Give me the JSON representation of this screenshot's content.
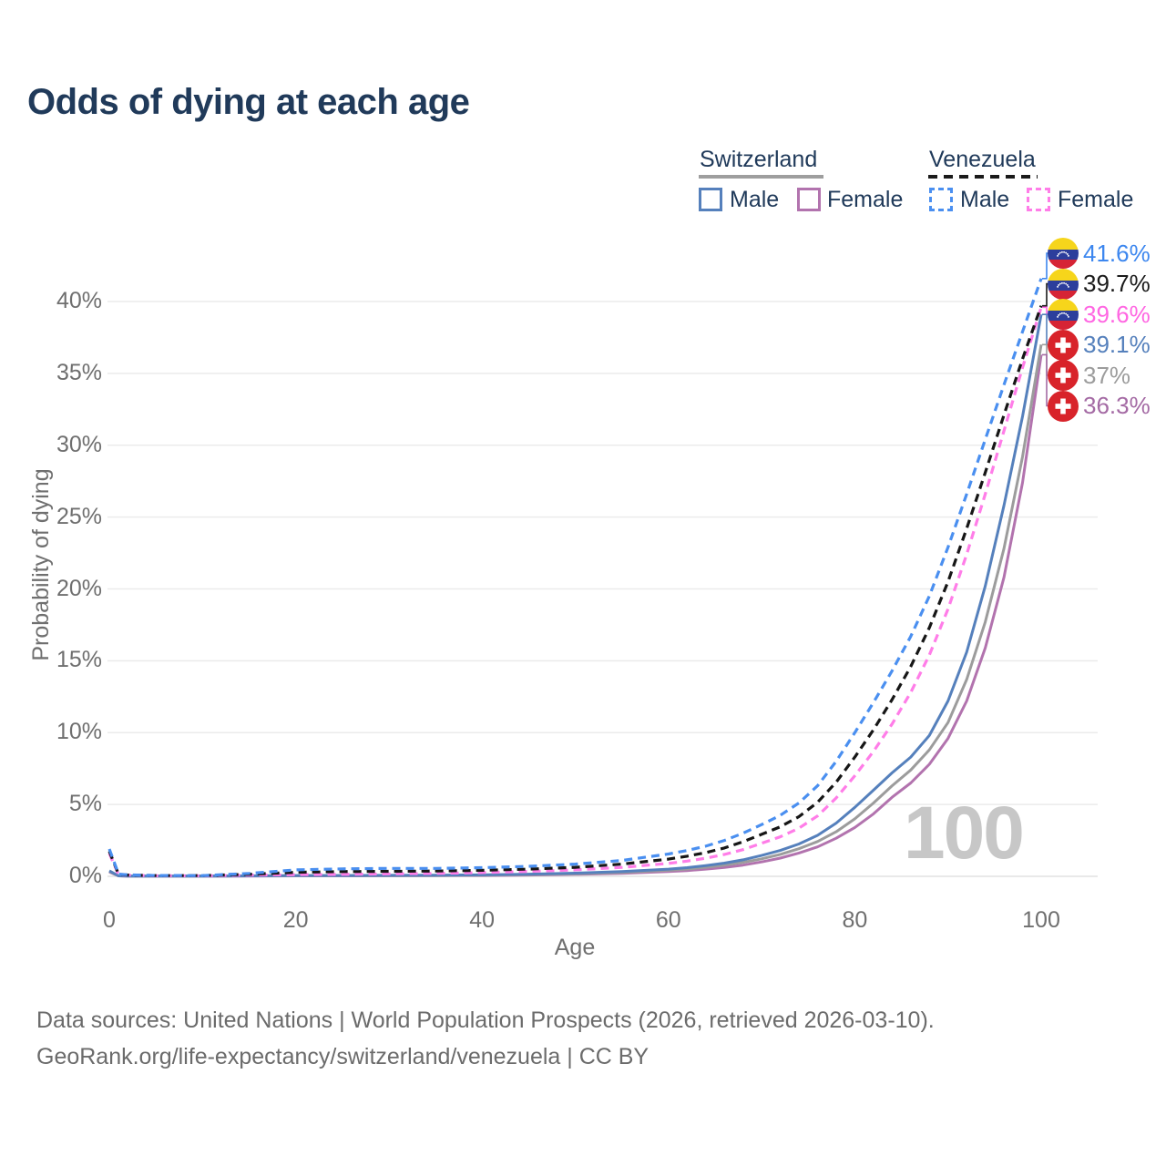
{
  "title": "Odds of dying at each age",
  "watermark_age": "100",
  "footer": {
    "line1": "Data sources: United Nations | World Population Prospects (2026, retrieved 2026-03-10).",
    "line2": "GeoRank.org/life-expectancy/switzerland/venezuela | CC BY"
  },
  "legend": {
    "groups": [
      {
        "name": "Switzerland",
        "line_style": "solid",
        "underline_color": "#9e9e9e",
        "items": [
          {
            "label": "Male",
            "color": "#5580bc",
            "style": "solid"
          },
          {
            "label": "Female",
            "color": "#b273ae",
            "style": "solid"
          }
        ]
      },
      {
        "name": "Venezuela",
        "line_style": "dashed",
        "underline_color": "#1a1a1a",
        "items": [
          {
            "label": "Male",
            "color": "#4a8ff0",
            "style": "dashed"
          },
          {
            "label": "Female",
            "color": "#ff7de8",
            "style": "dashed"
          }
        ]
      }
    ]
  },
  "chart_data": {
    "type": "line",
    "title": "Odds of dying at each age",
    "xlabel": "Age",
    "ylabel": "Probability of dying",
    "xlim": [
      0,
      100
    ],
    "ylim": [
      0,
      43
    ],
    "grid": "horizontal",
    "legend_position": "top-right",
    "x_tick_values": [
      0,
      20,
      40,
      60,
      80,
      100
    ],
    "x_tick_labels": [
      "0",
      "20",
      "40",
      "60",
      "80",
      "100"
    ],
    "y_tick_values": [
      0,
      5,
      10,
      15,
      20,
      25,
      30,
      35,
      40
    ],
    "y_tick_labels": [
      "0%",
      "5%",
      "10%",
      "15%",
      "20%",
      "25%",
      "30%",
      "35%",
      "40%"
    ],
    "x": [
      0,
      1,
      2,
      5,
      10,
      15,
      20,
      25,
      30,
      35,
      40,
      45,
      50,
      55,
      60,
      62,
      64,
      66,
      68,
      70,
      72,
      74,
      76,
      78,
      80,
      82,
      84,
      86,
      88,
      90,
      92,
      94,
      96,
      98,
      100
    ],
    "series": [
      {
        "name": "Venezuela Male",
        "country": "Venezuela",
        "sex": "Male",
        "color": "#4a8ff0",
        "dash": true,
        "flag": "venezuela",
        "end_label": "41.6%",
        "end_label_color": "#3d87ef",
        "values": [
          1.9,
          0.15,
          0.1,
          0.06,
          0.05,
          0.2,
          0.45,
          0.52,
          0.55,
          0.55,
          0.6,
          0.7,
          0.85,
          1.1,
          1.55,
          1.8,
          2.1,
          2.5,
          3.0,
          3.6,
          4.25,
          5.1,
          6.3,
          8.0,
          10.0,
          12.1,
          14.3,
          16.7,
          19.5,
          22.9,
          26.6,
          30.4,
          34.2,
          37.9,
          41.6
        ]
      },
      {
        "name": "Venezuela",
        "country": "Venezuela",
        "sex": "Both sexes",
        "color": "#161616",
        "dash": true,
        "flag": "venezuela",
        "end_label": "39.7%",
        "end_label_color": "#1a1a1a",
        "values": [
          1.75,
          0.13,
          0.09,
          0.05,
          0.05,
          0.14,
          0.28,
          0.33,
          0.35,
          0.37,
          0.42,
          0.5,
          0.63,
          0.85,
          1.2,
          1.4,
          1.65,
          1.97,
          2.4,
          2.92,
          3.45,
          4.15,
          5.15,
          6.55,
          8.3,
          10.2,
          12.3,
          14.6,
          17.3,
          20.5,
          24.2,
          28.1,
          32.1,
          36.0,
          39.7
        ]
      },
      {
        "name": "Venezuela Female",
        "country": "Venezuela",
        "sex": "Female",
        "color": "#ff7de8",
        "dash": true,
        "flag": "venezuela",
        "end_label": "39.6%",
        "end_label_color": "#ff66e2",
        "values": [
          1.6,
          0.11,
          0.08,
          0.04,
          0.04,
          0.08,
          0.12,
          0.14,
          0.17,
          0.2,
          0.26,
          0.34,
          0.45,
          0.62,
          0.9,
          1.06,
          1.26,
          1.52,
          1.86,
          2.3,
          2.75,
          3.35,
          4.2,
          5.45,
          7.0,
          8.7,
          10.6,
          12.8,
          15.4,
          18.6,
          22.4,
          26.6,
          31.0,
          35.4,
          39.6
        ]
      },
      {
        "name": "Switzerland Male",
        "country": "Switzerland",
        "sex": "Male",
        "color": "#5580bc",
        "dash": false,
        "flag": "switzerland",
        "end_label": "39.1%",
        "end_label_color": "#5580bc",
        "values": [
          0.38,
          0.03,
          0.02,
          0.01,
          0.01,
          0.03,
          0.06,
          0.06,
          0.07,
          0.08,
          0.1,
          0.15,
          0.22,
          0.33,
          0.5,
          0.6,
          0.75,
          0.92,
          1.15,
          1.45,
          1.8,
          2.25,
          2.85,
          3.7,
          4.8,
          6.0,
          7.2,
          8.3,
          9.8,
          12.2,
          15.6,
          20.2,
          25.8,
          32.0,
          39.1
        ]
      },
      {
        "name": "Switzerland",
        "country": "Switzerland",
        "sex": "Both sexes",
        "color": "#9c9c9c",
        "dash": false,
        "flag": "switzerland",
        "end_label": "37%",
        "end_label_color": "#9c9c9c",
        "values": [
          0.34,
          0.03,
          0.02,
          0.01,
          0.01,
          0.03,
          0.04,
          0.05,
          0.05,
          0.06,
          0.08,
          0.12,
          0.18,
          0.27,
          0.42,
          0.51,
          0.63,
          0.78,
          0.97,
          1.22,
          1.53,
          1.92,
          2.42,
          3.1,
          4.0,
          5.1,
          6.3,
          7.4,
          8.8,
          10.7,
          13.7,
          17.7,
          22.8,
          29.2,
          37.0
        ]
      },
      {
        "name": "Switzerland Female",
        "country": "Switzerland",
        "sex": "Female",
        "color": "#b273ae",
        "dash": false,
        "flag": "switzerland",
        "end_label": "36.3%",
        "end_label_color": "#a46aa4",
        "values": [
          0.3,
          0.03,
          0.02,
          0.01,
          0.01,
          0.02,
          0.03,
          0.03,
          0.04,
          0.05,
          0.06,
          0.09,
          0.14,
          0.21,
          0.33,
          0.4,
          0.5,
          0.62,
          0.78,
          1.0,
          1.27,
          1.62,
          2.05,
          2.65,
          3.4,
          4.35,
          5.5,
          6.5,
          7.8,
          9.6,
          12.2,
          15.9,
          20.8,
          27.4,
          36.3
        ]
      }
    ]
  }
}
